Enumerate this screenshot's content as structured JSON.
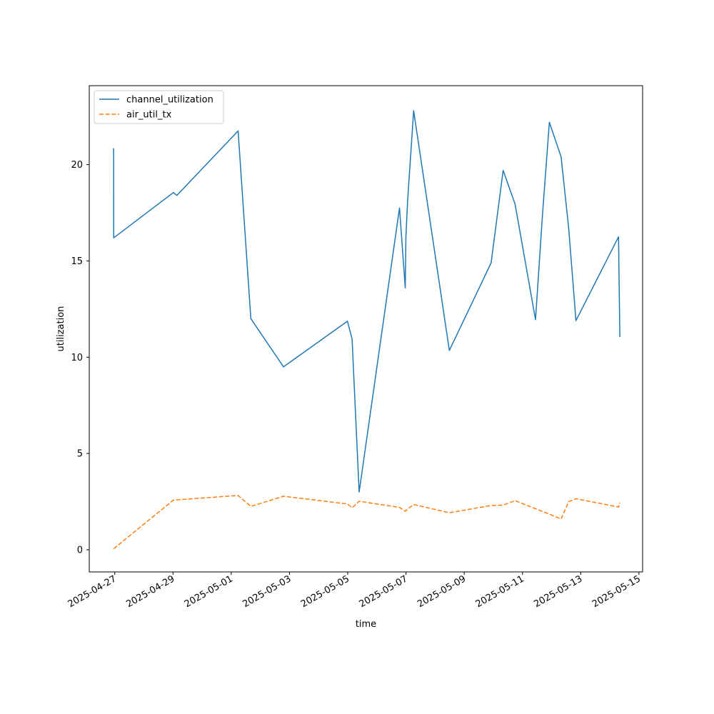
{
  "chart_data": {
    "type": "line",
    "xlabel": "time",
    "ylabel": "utilization",
    "x_ticks": [
      "2025-04-27",
      "2025-04-29",
      "2025-05-01",
      "2025-05-03",
      "2025-05-05",
      "2025-05-07",
      "2025-05-09",
      "2025-05-11",
      "2025-05-13",
      "2025-05-15"
    ],
    "y_ticks": [
      0,
      5,
      10,
      15,
      20
    ],
    "xlim": [
      "2025-04-26T03:00",
      "2025-05-15T03:00"
    ],
    "ylim": [
      -1.15,
      24.1
    ],
    "grid": false,
    "legend_position": "top-left",
    "series": [
      {
        "name": "channel_utilization",
        "color": "#1f77b4",
        "dash": "solid",
        "points": [
          [
            "2025-04-26T23:05",
            20.85
          ],
          [
            "2025-04-26T23:10",
            16.2
          ],
          [
            "2025-04-29T00:20",
            18.55
          ],
          [
            "2025-04-29T03:10",
            18.4
          ],
          [
            "2025-05-01T05:40",
            21.75
          ],
          [
            "2025-05-01T16:10",
            12.0
          ],
          [
            "2025-05-02T19:05",
            9.5
          ],
          [
            "2025-05-04T23:45",
            11.87
          ],
          [
            "2025-05-05T03:35",
            10.95
          ],
          [
            "2025-05-05T09:25",
            3.0
          ],
          [
            "2025-05-06T18:40",
            17.75
          ],
          [
            "2025-05-06T23:25",
            13.6
          ],
          [
            "2025-05-06T23:55",
            16.2
          ],
          [
            "2025-05-07T01:20",
            18.1
          ],
          [
            "2025-05-07T06:20",
            22.8
          ],
          [
            "2025-05-08T11:45",
            10.35
          ],
          [
            "2025-05-09T22:10",
            14.9
          ],
          [
            "2025-05-10T08:05",
            19.7
          ],
          [
            "2025-05-10T17:55",
            17.95
          ],
          [
            "2025-05-11T10:45",
            11.95
          ],
          [
            "2025-05-11T16:30",
            17.4
          ],
          [
            "2025-05-11T22:10",
            22.2
          ],
          [
            "2025-05-12T07:50",
            20.4
          ],
          [
            "2025-05-12T14:05",
            16.7
          ],
          [
            "2025-05-12T20:05",
            11.9
          ],
          [
            "2025-05-14T07:10",
            16.25
          ],
          [
            "2025-05-14T08:15",
            11.05
          ]
        ]
      },
      {
        "name": "air_util_tx",
        "color": "#ff7f0e",
        "dash": "dashed",
        "points": [
          [
            "2025-04-26T23:05",
            0.05
          ],
          [
            "2025-04-29T00:20",
            2.58
          ],
          [
            "2025-05-01T05:40",
            2.82
          ],
          [
            "2025-05-01T16:10",
            2.25
          ],
          [
            "2025-05-02T19:05",
            2.78
          ],
          [
            "2025-05-04T23:45",
            2.38
          ],
          [
            "2025-05-05T03:35",
            2.18
          ],
          [
            "2025-05-05T09:25",
            2.52
          ],
          [
            "2025-05-06T18:40",
            2.2
          ],
          [
            "2025-05-06T23:25",
            2.0
          ],
          [
            "2025-05-07T01:20",
            2.12
          ],
          [
            "2025-05-07T06:20",
            2.35
          ],
          [
            "2025-05-08T11:45",
            1.92
          ],
          [
            "2025-05-09T22:10",
            2.3
          ],
          [
            "2025-05-10T08:05",
            2.32
          ],
          [
            "2025-05-10T17:55",
            2.55
          ],
          [
            "2025-05-11T22:10",
            1.85
          ],
          [
            "2025-05-12T07:50",
            1.6
          ],
          [
            "2025-05-12T14:05",
            2.5
          ],
          [
            "2025-05-12T20:05",
            2.65
          ],
          [
            "2025-05-14T07:10",
            2.22
          ],
          [
            "2025-05-14T08:15",
            2.45
          ]
        ]
      }
    ]
  }
}
